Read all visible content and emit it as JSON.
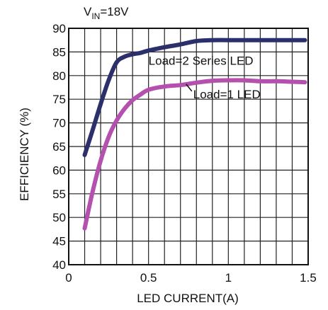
{
  "chart_data": {
    "type": "line",
    "title_main": "V",
    "title_sub": "IN",
    "title_rest": "=18V",
    "xlabel": "LED CURRENT(A)",
    "ylabel": "EFFICIENCY (%)",
    "xlim": [
      0,
      1.5
    ],
    "ylim": [
      40,
      90
    ],
    "grid": true,
    "x_ticks": [
      0,
      0.1,
      0.2,
      0.3,
      0.4,
      0.5,
      0.6,
      0.7,
      0.8,
      0.9,
      1.0,
      1.1,
      1.2,
      1.3,
      1.4,
      1.5
    ],
    "y_ticks": [
      40,
      45,
      50,
      55,
      60,
      65,
      70,
      75,
      80,
      85,
      90
    ],
    "x_tick_labels": [
      {
        "value": 0,
        "text": "0"
      },
      {
        "value": 0.5,
        "text": "0.5"
      },
      {
        "value": 1.0,
        "text": "1"
      },
      {
        "value": 1.5,
        "text": "1.5"
      }
    ],
    "y_tick_labels": [
      {
        "value": 40,
        "text": "40"
      },
      {
        "value": 45,
        "text": "45"
      },
      {
        "value": 50,
        "text": "50"
      },
      {
        "value": 55,
        "text": "55"
      },
      {
        "value": 60,
        "text": "60"
      },
      {
        "value": 65,
        "text": "65"
      },
      {
        "value": 70,
        "text": "70"
      },
      {
        "value": 75,
        "text": "75"
      },
      {
        "value": 80,
        "text": "80"
      },
      {
        "value": 85,
        "text": "85"
      },
      {
        "value": 90,
        "text": "90"
      }
    ],
    "series": [
      {
        "name": "Load=2 Series LED",
        "color": "#2b2f6b",
        "x": [
          0.1,
          0.15,
          0.2,
          0.25,
          0.3,
          0.35,
          0.4,
          0.45,
          0.5,
          0.6,
          0.7,
          0.8,
          0.9,
          1.0,
          1.1,
          1.2,
          1.3,
          1.4,
          1.48
        ],
        "y": [
          63.2,
          68.5,
          74.0,
          79.0,
          82.8,
          84.0,
          84.5,
          84.8,
          85.3,
          86.0,
          86.6,
          87.3,
          87.5,
          87.5,
          87.5,
          87.5,
          87.5,
          87.5,
          87.5
        ]
      },
      {
        "name": "Load=1 LED",
        "color": "#b450ae",
        "x": [
          0.1,
          0.15,
          0.2,
          0.25,
          0.3,
          0.35,
          0.4,
          0.45,
          0.5,
          0.6,
          0.7,
          0.8,
          0.9,
          1.0,
          1.1,
          1.2,
          1.3,
          1.4,
          1.48
        ],
        "y": [
          47.7,
          55.5,
          62.0,
          67.0,
          70.5,
          73.0,
          74.8,
          76.0,
          77.0,
          77.7,
          78.0,
          78.5,
          78.9,
          79.0,
          79.0,
          78.8,
          78.8,
          78.7,
          78.6
        ]
      }
    ],
    "annotations": [
      {
        "text": "Load=2 Series LED",
        "series": 0,
        "x": 0.5,
        "y": 82.3
      },
      {
        "text": "Load=1 LED",
        "series": 1,
        "x": 0.78,
        "y": 75.2
      }
    ]
  }
}
